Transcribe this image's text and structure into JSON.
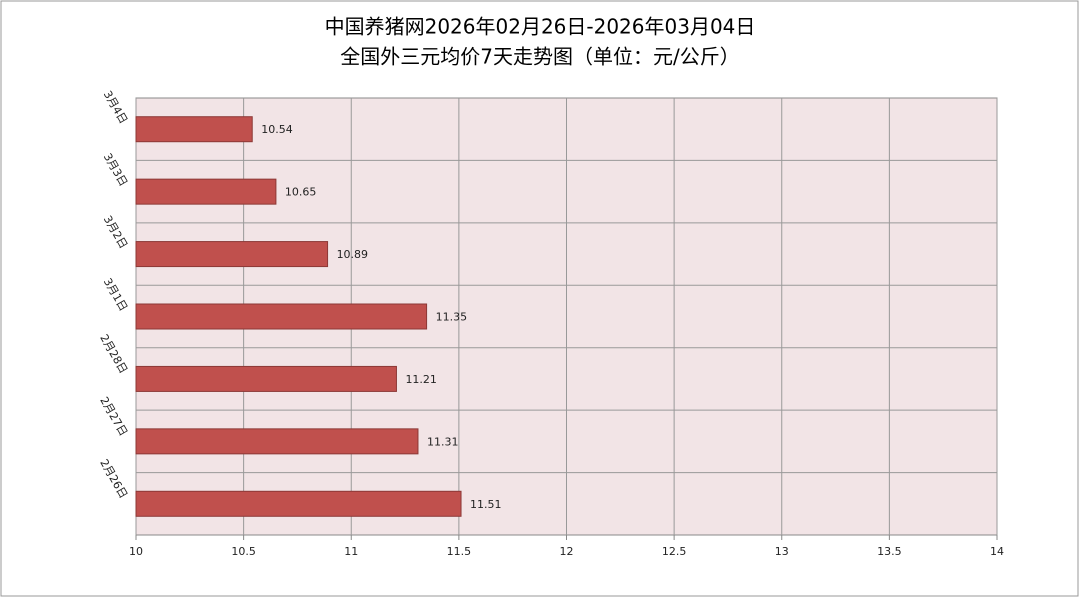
{
  "chart_data": {
    "type": "bar",
    "orientation": "horizontal",
    "title": "中国养猪网2026年02月26日-2026年03月04日",
    "subtitle": "全国外三元均价7天走势图（单位：元/公斤）",
    "categories": [
      "3月4日",
      "3月3日",
      "3月2日",
      "3月1日",
      "2月28日",
      "2月27日",
      "2月26日"
    ],
    "values": [
      10.54,
      10.65,
      10.89,
      11.35,
      11.21,
      11.31,
      11.51
    ],
    "color": "#c0504d",
    "xlim": [
      10,
      14
    ],
    "xticks": [
      10,
      10.5,
      11,
      11.5,
      12,
      12.5,
      13,
      13.5,
      14
    ],
    "grid": true
  }
}
